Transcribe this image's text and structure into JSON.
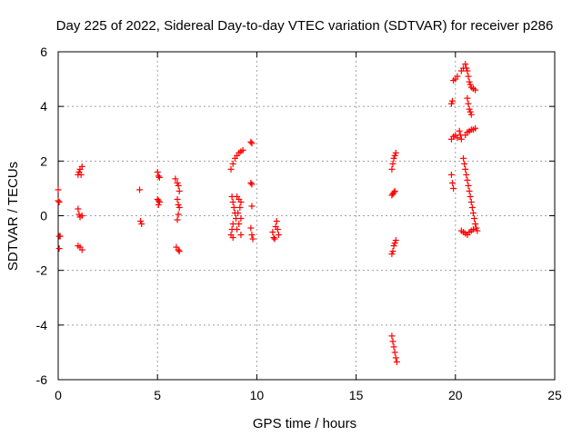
{
  "chart_data": {
    "type": "scatter",
    "title": "Day 225 of 2022, Sidereal Day-to-day VTEC variation (SDTVAR) for receiver p286",
    "xlabel": "GPS time / hours",
    "ylabel": "SDTVAR / TECUs",
    "xlim": [
      0,
      25
    ],
    "ylim": [
      -6,
      6
    ],
    "xticks": [
      "0",
      "5",
      "10",
      "15",
      "20",
      "25"
    ],
    "yticks": [
      "-6",
      "-4",
      "-2",
      "0",
      "2",
      "4",
      "6"
    ],
    "grid": true,
    "marker": "+",
    "color": "#ff0000",
    "series": [
      {
        "name": "SDTVAR",
        "points": [
          [
            0.0,
            0.95
          ],
          [
            0.0,
            0.55
          ],
          [
            0.05,
            0.5
          ],
          [
            0.05,
            -0.75
          ],
          [
            0.1,
            -0.75
          ],
          [
            0.05,
            -1.2
          ],
          [
            1.0,
            1.5
          ],
          [
            1.05,
            1.6
          ],
          [
            1.1,
            1.7
          ],
          [
            1.2,
            1.8
          ],
          [
            1.15,
            1.5
          ],
          [
            1.0,
            0.25
          ],
          [
            1.05,
            0.05
          ],
          [
            1.1,
            -0.05
          ],
          [
            1.2,
            0.0
          ],
          [
            1.0,
            -1.1
          ],
          [
            1.1,
            -1.15
          ],
          [
            1.2,
            -1.25
          ],
          [
            4.1,
            0.95
          ],
          [
            4.15,
            -0.2
          ],
          [
            4.2,
            -0.3
          ],
          [
            5.0,
            1.6
          ],
          [
            5.05,
            1.45
          ],
          [
            5.1,
            1.4
          ],
          [
            5.0,
            0.6
          ],
          [
            5.05,
            0.55
          ],
          [
            5.1,
            0.5
          ],
          [
            5.05,
            0.4
          ],
          [
            5.9,
            1.35
          ],
          [
            6.0,
            1.2
          ],
          [
            6.05,
            1.1
          ],
          [
            6.1,
            0.9
          ],
          [
            6.0,
            0.6
          ],
          [
            6.05,
            0.4
          ],
          [
            6.1,
            0.3
          ],
          [
            6.05,
            0.05
          ],
          [
            6.0,
            -0.15
          ],
          [
            5.95,
            -1.15
          ],
          [
            6.05,
            -1.25
          ],
          [
            6.1,
            -1.3
          ],
          [
            8.75,
            0.7
          ],
          [
            8.8,
            0.5
          ],
          [
            8.85,
            0.3
          ],
          [
            8.9,
            0.1
          ],
          [
            8.95,
            -0.1
          ],
          [
            8.8,
            -0.3
          ],
          [
            8.75,
            -0.5
          ],
          [
            8.7,
            -0.7
          ],
          [
            8.8,
            -0.8
          ],
          [
            9.0,
            0.7
          ],
          [
            9.1,
            0.6
          ],
          [
            9.2,
            0.5
          ],
          [
            9.15,
            0.3
          ],
          [
            9.05,
            0.1
          ],
          [
            9.2,
            -0.1
          ],
          [
            9.1,
            -0.3
          ],
          [
            9.0,
            -0.5
          ],
          [
            9.2,
            -0.7
          ],
          [
            8.7,
            1.7
          ],
          [
            8.8,
            1.9
          ],
          [
            8.9,
            2.1
          ],
          [
            9.0,
            2.2
          ],
          [
            9.1,
            2.3
          ],
          [
            9.2,
            2.35
          ],
          [
            9.3,
            2.4
          ],
          [
            9.7,
            2.7
          ],
          [
            9.75,
            2.65
          ],
          [
            9.7,
            1.2
          ],
          [
            9.75,
            1.15
          ],
          [
            9.75,
            0.35
          ],
          [
            9.7,
            -0.45
          ],
          [
            9.75,
            -0.7
          ],
          [
            9.8,
            -0.85
          ],
          [
            10.8,
            -0.6
          ],
          [
            10.85,
            -0.8
          ],
          [
            10.9,
            -0.85
          ],
          [
            10.95,
            -0.4
          ],
          [
            11.0,
            -0.2
          ],
          [
            11.05,
            -0.5
          ],
          [
            11.1,
            -0.7
          ],
          [
            16.8,
            0.75
          ],
          [
            16.85,
            0.8
          ],
          [
            16.9,
            0.85
          ],
          [
            16.95,
            0.9
          ],
          [
            16.8,
            1.7
          ],
          [
            16.85,
            1.9
          ],
          [
            16.9,
            2.1
          ],
          [
            16.95,
            2.2
          ],
          [
            17.0,
            2.3
          ],
          [
            16.8,
            -1.4
          ],
          [
            16.85,
            -1.3
          ],
          [
            16.9,
            -1.1
          ],
          [
            16.95,
            -1.0
          ],
          [
            17.0,
            -0.9
          ],
          [
            16.8,
            -4.4
          ],
          [
            16.85,
            -4.6
          ],
          [
            16.9,
            -4.8
          ],
          [
            16.95,
            -5.0
          ],
          [
            17.0,
            -5.2
          ],
          [
            17.05,
            -5.35
          ],
          [
            19.8,
            1.5
          ],
          [
            19.85,
            1.2
          ],
          [
            19.9,
            1.0
          ],
          [
            19.8,
            2.8
          ],
          [
            19.9,
            2.9
          ],
          [
            20.0,
            2.95
          ],
          [
            20.1,
            2.85
          ],
          [
            20.2,
            3.1
          ],
          [
            20.25,
            2.95
          ],
          [
            20.3,
            2.8
          ],
          [
            19.8,
            4.1
          ],
          [
            19.85,
            4.2
          ],
          [
            19.9,
            4.95
          ],
          [
            20.0,
            5.0
          ],
          [
            20.1,
            5.1
          ],
          [
            20.3,
            5.3
          ],
          [
            20.4,
            5.4
          ],
          [
            20.5,
            5.55
          ],
          [
            20.55,
            5.4
          ],
          [
            20.6,
            5.3
          ],
          [
            20.65,
            5.1
          ],
          [
            20.7,
            4.9
          ],
          [
            20.75,
            4.8
          ],
          [
            20.8,
            4.7
          ],
          [
            20.9,
            4.65
          ],
          [
            21.0,
            4.6
          ],
          [
            20.6,
            4.3
          ],
          [
            20.65,
            4.1
          ],
          [
            20.7,
            3.9
          ],
          [
            20.75,
            3.8
          ],
          [
            20.8,
            3.7
          ],
          [
            20.5,
            2.95
          ],
          [
            20.6,
            3.05
          ],
          [
            20.7,
            3.1
          ],
          [
            20.8,
            3.15
          ],
          [
            20.9,
            3.15
          ],
          [
            21.0,
            3.2
          ],
          [
            20.4,
            2.1
          ],
          [
            20.45,
            1.9
          ],
          [
            20.5,
            1.7
          ],
          [
            20.55,
            1.5
          ],
          [
            20.6,
            1.3
          ],
          [
            20.65,
            1.1
          ],
          [
            20.7,
            0.9
          ],
          [
            20.75,
            0.7
          ],
          [
            20.8,
            0.5
          ],
          [
            20.85,
            0.3
          ],
          [
            20.9,
            0.1
          ],
          [
            20.95,
            -0.1
          ],
          [
            21.0,
            -0.3
          ],
          [
            21.05,
            -0.45
          ],
          [
            21.1,
            -0.55
          ],
          [
            20.3,
            -0.55
          ],
          [
            20.4,
            -0.6
          ],
          [
            20.5,
            -0.65
          ],
          [
            20.6,
            -0.7
          ],
          [
            20.7,
            -0.6
          ],
          [
            20.8,
            -0.55
          ],
          [
            20.9,
            -0.5
          ]
        ]
      }
    ]
  }
}
